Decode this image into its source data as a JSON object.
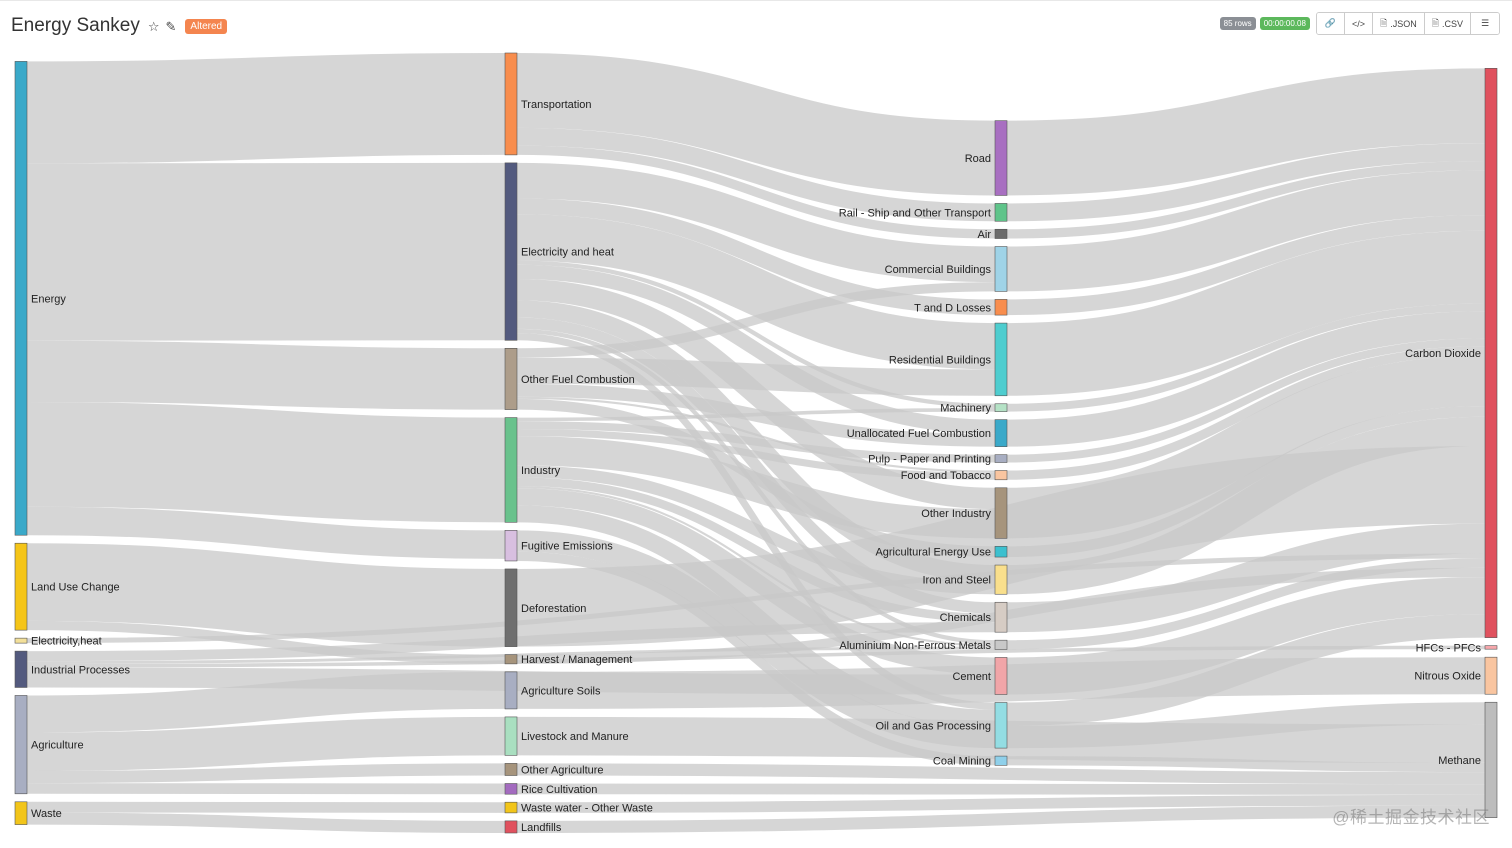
{
  "header": {
    "title": "Energy Sankey",
    "altered_label": "Altered"
  },
  "toolbar": {
    "rows_badge": "85 rows",
    "time_badge": "00:00:00.08",
    "json_label": ".JSON",
    "csv_label": ".CSV"
  },
  "watermark": "@稀土掘金技术社区",
  "colors": {
    "link": "#c8c8c8",
    "title": "#333333",
    "altered": "#f4854f",
    "rows_badge": "#8b8f95",
    "time_badge": "#5cb85c"
  },
  "sankey": {
    "nodes": [
      {
        "id": "energy",
        "label": "Energy",
        "column": 0,
        "color": "#3aa9c9"
      },
      {
        "id": "luc",
        "label": "Land Use Change",
        "column": 0,
        "color": "#f5c518"
      },
      {
        "id": "elec0",
        "label": "Electricity,heat",
        "column": 0,
        "color": "#f3e09a"
      },
      {
        "id": "indproc",
        "label": "Industrial Processes",
        "column": 0,
        "color": "#535a7e"
      },
      {
        "id": "agri",
        "label": "Agriculture",
        "column": 0,
        "color": "#a8aec2"
      },
      {
        "id": "waste",
        "label": "Waste",
        "column": 0,
        "color": "#f2c51a"
      },
      {
        "id": "transport",
        "label": "Transportation",
        "column": 1,
        "color": "#f88d4d"
      },
      {
        "id": "elecheat",
        "label": "Electricity and heat",
        "column": 1,
        "color": "#535a7e"
      },
      {
        "id": "otherfuel",
        "label": "Other Fuel Combustion",
        "column": 1,
        "color": "#ad9d8a"
      },
      {
        "id": "industry",
        "label": "Industry",
        "column": 1,
        "color": "#69c28c"
      },
      {
        "id": "fugitive",
        "label": "Fugitive Emissions",
        "column": 1,
        "color": "#d8bfe0"
      },
      {
        "id": "deforest",
        "label": "Deforestation",
        "column": 1,
        "color": "#6f6f6f"
      },
      {
        "id": "harvest",
        "label": "Harvest / Management",
        "column": 1,
        "color": "#a6947c"
      },
      {
        "id": "agsoils",
        "label": "Agriculture Soils",
        "column": 1,
        "color": "#a8aec2"
      },
      {
        "id": "livestock",
        "label": "Livestock and Manure",
        "column": 1,
        "color": "#a9dfc0"
      },
      {
        "id": "otheragri",
        "label": "Other Agriculture",
        "column": 1,
        "color": "#a6947c"
      },
      {
        "id": "rice",
        "label": "Rice Cultivation",
        "column": 1,
        "color": "#a36bbf"
      },
      {
        "id": "wastewater",
        "label": "Waste water - Other Waste",
        "column": 1,
        "color": "#f2c51a"
      },
      {
        "id": "landfills",
        "label": "Landfills",
        "column": 1,
        "color": "#e0515e"
      },
      {
        "id": "road",
        "label": "Road",
        "column": 2,
        "color": "#a86fc1"
      },
      {
        "id": "rail",
        "label": "Rail - Ship and Other Transport",
        "column": 2,
        "color": "#5fc48a"
      },
      {
        "id": "air",
        "label": "Air",
        "column": 2,
        "color": "#6b6b6b"
      },
      {
        "id": "commercial",
        "label": "Commercial Buildings",
        "column": 2,
        "color": "#9fd3e7"
      },
      {
        "id": "tdloss",
        "label": "T and D Losses",
        "column": 2,
        "color": "#f88d4d"
      },
      {
        "id": "residential",
        "label": "Residential Buildings",
        "column": 2,
        "color": "#4ecdcf"
      },
      {
        "id": "machinery",
        "label": "Machinery",
        "column": 2,
        "color": "#b5e2c6"
      },
      {
        "id": "unalloc",
        "label": "Unallocated Fuel Combustion",
        "column": 2,
        "color": "#3aa9c9"
      },
      {
        "id": "pulp",
        "label": "Pulp - Paper and Printing",
        "column": 2,
        "color": "#a8aec2"
      },
      {
        "id": "food",
        "label": "Food and Tobacco",
        "column": 2,
        "color": "#f9c5a0"
      },
      {
        "id": "otherind",
        "label": "Other Industry",
        "column": 2,
        "color": "#a6947c"
      },
      {
        "id": "agenergy",
        "label": "Agricultural Energy Use",
        "column": 2,
        "color": "#3cc0cf"
      },
      {
        "id": "iron",
        "label": "Iron and Steel",
        "column": 2,
        "color": "#f9df8c"
      },
      {
        "id": "chemicals",
        "label": "Chemicals",
        "column": 2,
        "color": "#d6ccc4"
      },
      {
        "id": "aluminium",
        "label": "Aluminium Non-Ferrous Metals",
        "column": 2,
        "color": "#c8c8c8"
      },
      {
        "id": "cement",
        "label": "Cement",
        "column": 2,
        "color": "#f1a5a8"
      },
      {
        "id": "oilgas",
        "label": "Oil and Gas Processing",
        "column": 2,
        "color": "#93dde3"
      },
      {
        "id": "coal",
        "label": "Coal Mining",
        "column": 2,
        "color": "#8fd0ea"
      },
      {
        "id": "co2",
        "label": "Carbon Dioxide",
        "column": 3,
        "color": "#e0515e"
      },
      {
        "id": "hfc",
        "label": "HFCs - PFCs",
        "column": 3,
        "color": "#f6a7ac"
      },
      {
        "id": "n2o",
        "label": "Nitrous Oxide",
        "column": 3,
        "color": "#f9c5a0"
      },
      {
        "id": "ch4",
        "label": "Methane",
        "column": 3,
        "color": "#bdbdbd"
      }
    ],
    "links": [
      {
        "source": "energy",
        "target": "transport",
        "value": 14.3
      },
      {
        "source": "energy",
        "target": "elecheat",
        "value": 24.9
      },
      {
        "source": "energy",
        "target": "otherfuel",
        "value": 8.6
      },
      {
        "source": "energy",
        "target": "industry",
        "value": 14.7
      },
      {
        "source": "energy",
        "target": "fugitive",
        "value": 4.0
      },
      {
        "source": "luc",
        "target": "deforest",
        "value": 10.9
      },
      {
        "source": "luc",
        "target": "harvest",
        "value": 1.3
      },
      {
        "source": "elec0",
        "target": "co2",
        "value": 0.7
      },
      {
        "source": "indproc",
        "target": "cement",
        "value": 2.8
      },
      {
        "source": "indproc",
        "target": "chemicals",
        "value": 1.4
      },
      {
        "source": "indproc",
        "target": "aluminium",
        "value": 0.4
      },
      {
        "source": "indproc",
        "target": "hfc",
        "value": 0.5
      },
      {
        "source": "agri",
        "target": "agsoils",
        "value": 5.2
      },
      {
        "source": "agri",
        "target": "livestock",
        "value": 5.4
      },
      {
        "source": "agri",
        "target": "otheragri",
        "value": 1.7
      },
      {
        "source": "agri",
        "target": "rice",
        "value": 1.5
      },
      {
        "source": "waste",
        "target": "wastewater",
        "value": 1.5
      },
      {
        "source": "waste",
        "target": "landfills",
        "value": 1.7
      },
      {
        "source": "transport",
        "target": "road",
        "value": 10.5
      },
      {
        "source": "transport",
        "target": "rail",
        "value": 2.5
      },
      {
        "source": "transport",
        "target": "air",
        "value": 1.3
      },
      {
        "source": "elecheat",
        "target": "commercial",
        "value": 5.0
      },
      {
        "source": "elecheat",
        "target": "tdloss",
        "value": 2.2
      },
      {
        "source": "elecheat",
        "target": "residential",
        "value": 6.5
      },
      {
        "source": "elecheat",
        "target": "unalloc",
        "value": 2.0
      },
      {
        "source": "elecheat",
        "target": "otherind",
        "value": 3.0
      },
      {
        "source": "elecheat",
        "target": "iron",
        "value": 2.4
      },
      {
        "source": "elecheat",
        "target": "chemicals",
        "value": 1.6
      },
      {
        "source": "elecheat",
        "target": "aluminium",
        "value": 0.6
      },
      {
        "source": "elecheat",
        "target": "machinery",
        "value": 0.6
      },
      {
        "source": "elecheat",
        "target": "oilgas",
        "value": 1.0
      },
      {
        "source": "otherfuel",
        "target": "commercial",
        "value": 1.3
      },
      {
        "source": "otherfuel",
        "target": "residential",
        "value": 3.7
      },
      {
        "source": "otherfuel",
        "target": "unalloc",
        "value": 1.8
      },
      {
        "source": "otherfuel",
        "target": "agenergy",
        "value": 1.5
      },
      {
        "source": "otherfuel",
        "target": "food",
        "value": 0.3
      },
      {
        "source": "industry",
        "target": "iron",
        "value": 1.7
      },
      {
        "source": "industry",
        "target": "chemicals",
        "value": 1.2
      },
      {
        "source": "industry",
        "target": "otherind",
        "value": 4.1
      },
      {
        "source": "industry",
        "target": "pulp",
        "value": 1.1
      },
      {
        "source": "industry",
        "target": "food",
        "value": 1.0
      },
      {
        "source": "industry",
        "target": "cement",
        "value": 2.4
      },
      {
        "source": "industry",
        "target": "machinery",
        "value": 0.5
      },
      {
        "source": "industry",
        "target": "aluminium",
        "value": 0.3
      },
      {
        "source": "industry",
        "target": "oilgas",
        "value": 2.4
      },
      {
        "source": "fugitive",
        "target": "oilgas",
        "value": 3.0
      },
      {
        "source": "fugitive",
        "target": "coal",
        "value": 1.3
      },
      {
        "source": "deforest",
        "target": "co2",
        "value": 10.9
      },
      {
        "source": "harvest",
        "target": "co2",
        "value": 1.3
      },
      {
        "source": "agsoils",
        "target": "n2o",
        "value": 5.2
      },
      {
        "source": "livestock",
        "target": "ch4",
        "value": 5.4
      },
      {
        "source": "otheragri",
        "target": "ch4",
        "value": 1.7
      },
      {
        "source": "rice",
        "target": "ch4",
        "value": 1.5
      },
      {
        "source": "wastewater",
        "target": "ch4",
        "value": 1.5
      },
      {
        "source": "landfills",
        "target": "ch4",
        "value": 1.7
      },
      {
        "source": "road",
        "target": "co2",
        "value": 10.5
      },
      {
        "source": "rail",
        "target": "co2",
        "value": 2.5
      },
      {
        "source": "air",
        "target": "co2",
        "value": 1.3
      },
      {
        "source": "commercial",
        "target": "co2",
        "value": 6.3
      },
      {
        "source": "tdloss",
        "target": "co2",
        "value": 2.2
      },
      {
        "source": "residential",
        "target": "co2",
        "value": 10.2
      },
      {
        "source": "machinery",
        "target": "co2",
        "value": 1.1
      },
      {
        "source": "unalloc",
        "target": "co2",
        "value": 3.8
      },
      {
        "source": "pulp",
        "target": "co2",
        "value": 1.1
      },
      {
        "source": "food",
        "target": "co2",
        "value": 1.3
      },
      {
        "source": "otherind",
        "target": "co2",
        "value": 7.1
      },
      {
        "source": "agenergy",
        "target": "co2",
        "value": 1.5
      },
      {
        "source": "iron",
        "target": "co2",
        "value": 4.1
      },
      {
        "source": "chemicals",
        "target": "co2",
        "value": 4.2
      },
      {
        "source": "aluminium",
        "target": "co2",
        "value": 1.3
      },
      {
        "source": "cement",
        "target": "co2",
        "value": 5.2
      },
      {
        "source": "oilgas",
        "target": "co2",
        "value": 3.3
      },
      {
        "source": "oilgas",
        "target": "ch4",
        "value": 3.1
      },
      {
        "source": "coal",
        "target": "ch4",
        "value": 1.3
      }
    ]
  }
}
